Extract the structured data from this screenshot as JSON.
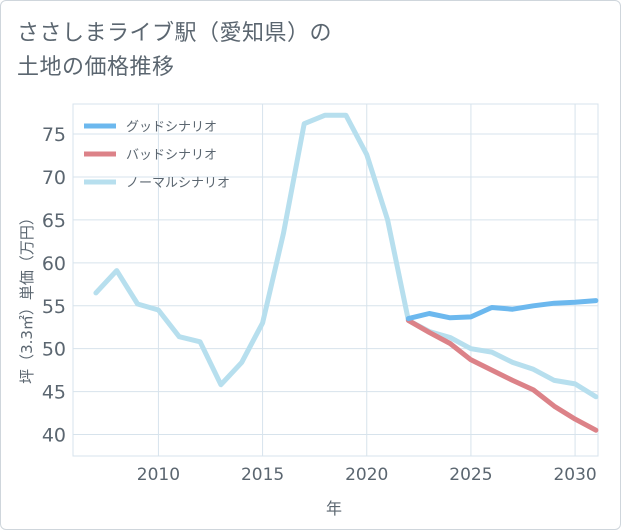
{
  "title": {
    "line1": "ささしまライブ駅（愛知県）の",
    "line2": "土地の価格推移"
  },
  "colors": {
    "good": "#6cb8ee",
    "bad": "#dc8288",
    "normal": "#b7dfee",
    "grid": "#d7e3ec",
    "axis_text": "#5b6670"
  },
  "chart_data": {
    "type": "line",
    "title": "ささしまライブ駅（愛知県）の土地の価格推移",
    "xlabel": "年",
    "ylabel": "坪（3.3㎡）単価（万円）",
    "xlim": [
      2005.9,
      2031.1
    ],
    "ylim": [
      37.5,
      78.5
    ],
    "xticks": [
      2010,
      2015,
      2020,
      2025,
      2030
    ],
    "yticks": [
      40,
      45,
      50,
      55,
      60,
      65,
      70,
      75
    ],
    "grid": true,
    "legend_position": "top-left",
    "series": [
      {
        "name": "グッドシナリオ",
        "color": "#6cb8ee",
        "x": [
          2022,
          2023,
          2024,
          2025,
          2026,
          2027,
          2028,
          2029,
          2030,
          2031
        ],
        "values": [
          53.5,
          54.1,
          53.6,
          53.7,
          54.8,
          54.6,
          55.0,
          55.3,
          55.4,
          55.6
        ]
      },
      {
        "name": "バッドシナリオ",
        "color": "#dc8288",
        "x": [
          2022,
          2023,
          2024,
          2025,
          2026,
          2027,
          2028,
          2029,
          2030,
          2031
        ],
        "values": [
          53.3,
          51.9,
          50.6,
          48.7,
          47.5,
          46.3,
          45.2,
          43.3,
          41.8,
          40.5
        ]
      },
      {
        "name": "ノーマルシナリオ",
        "color": "#b7dfee",
        "x": [
          2007,
          2008,
          2009,
          2010,
          2011,
          2012,
          2013,
          2014,
          2015,
          2016,
          2017,
          2018,
          2019,
          2020,
          2021,
          2022,
          2023,
          2024,
          2025,
          2026,
          2027,
          2028,
          2029,
          2030,
          2031
        ],
        "values": [
          56.5,
          59.1,
          55.2,
          54.5,
          51.4,
          50.8,
          45.8,
          48.4,
          53.0,
          63.4,
          76.2,
          77.2,
          77.2,
          72.6,
          65.0,
          53.3,
          52.0,
          51.3,
          50.0,
          49.6,
          48.4,
          47.6,
          46.3,
          45.9,
          44.4
        ]
      }
    ]
  }
}
